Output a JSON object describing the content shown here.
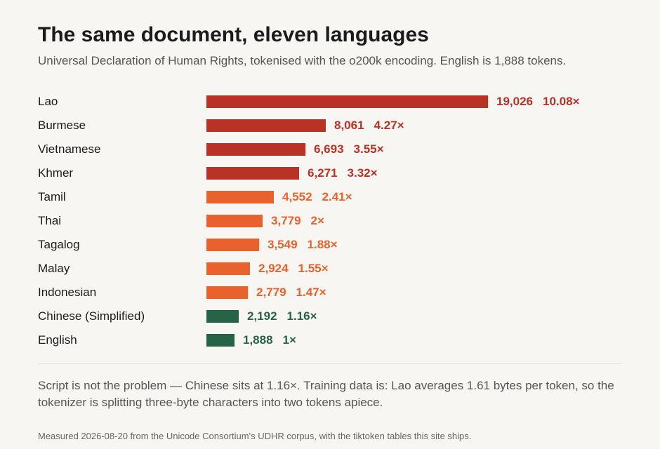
{
  "header": {
    "title": "The same document, eleven languages",
    "subtitle": "Universal Declaration of Human Rights, tokenised with the o200k encoding. English is 1,888 tokens."
  },
  "chart_data": {
    "type": "bar",
    "orientation": "horizontal",
    "categories": [
      "Lao",
      "Burmese",
      "Vietnamese",
      "Khmer",
      "Tamil",
      "Thai",
      "Tagalog",
      "Malay",
      "Indonesian",
      "Chinese (Simplified)",
      "English"
    ],
    "values": [
      19026,
      8061,
      6693,
      6271,
      4552,
      3779,
      3549,
      2924,
      2779,
      2192,
      1888
    ],
    "value_labels": [
      "19,026",
      "8,061",
      "6,693",
      "6,271",
      "4,552",
      "3,779",
      "3,549",
      "2,924",
      "2,779",
      "2,192",
      "1,888"
    ],
    "ratio_labels": [
      "10.08×",
      "4.27×",
      "3.55×",
      "3.32×",
      "2.41×",
      "2×",
      "1.88×",
      "1.55×",
      "1.47×",
      "1.16×",
      "1×"
    ],
    "groups": [
      "high",
      "high",
      "high",
      "high",
      "mid",
      "mid",
      "mid",
      "mid",
      "mid",
      "low",
      "low"
    ],
    "colors": {
      "high": "#b83225",
      "mid": "#e9622d",
      "low": "#276447"
    },
    "xlim": [
      0,
      19026
    ],
    "grid": false,
    "legend": "none"
  },
  "note": "Script is not the problem — Chinese sits at 1.16×. Training data is: Lao averages 1.61 bytes per token, so the tokenizer is splitting three-byte characters into two tokens apiece.",
  "footer": "Measured 2026-08-20 from the Unicode Consortium's UDHR corpus, with the tiktoken tables this site ships."
}
